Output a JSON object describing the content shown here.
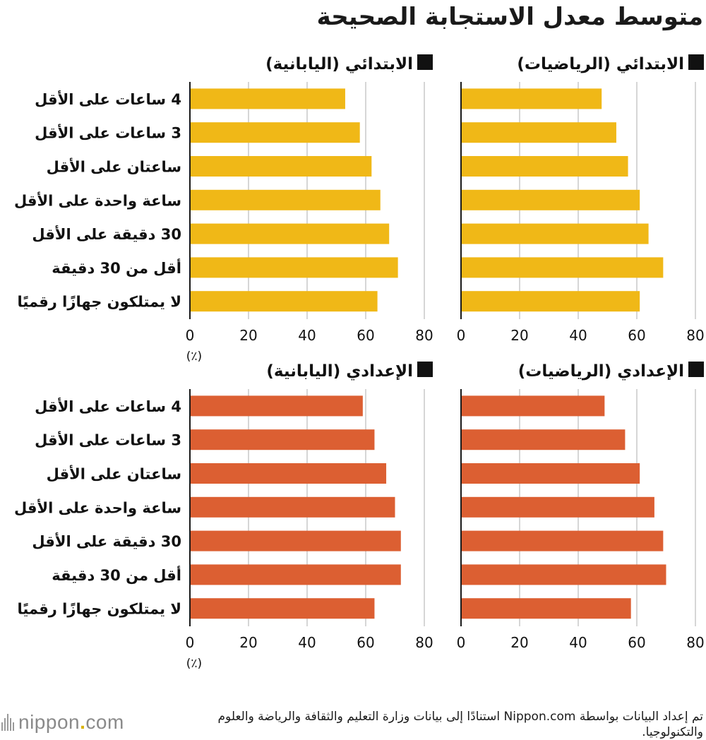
{
  "title": "متوسط معدل الاستجابة الصحيحة",
  "source": "تم إعداد البيانات بواسطة Nippon.com استنادًا إلى بيانات وزارة التعليم والثقافة والرياضة والعلوم والتكنولوجيا.",
  "logo": {
    "brand": "nippon",
    "dot": ".",
    "tld": "com"
  },
  "colors": {
    "elementary": "#f0b817",
    "middle": "#dc5f32",
    "grid": "#c8c8c8",
    "axis": "#1a1a1a"
  },
  "chart_data": [
    {
      "type": "bar",
      "orientation": "horizontal",
      "title": "الابتدائي (الرياضيات)",
      "categories": [
        "4 ساعات على الأقل",
        "3 ساعات على الأقل",
        "ساعتان على الأقل",
        "ساعة واحدة على الأقل",
        "30 دقيقة على الأقل",
        "أقل من 30 دقيقة",
        "لا يمتلكون جهازًا رقميًا"
      ],
      "values": [
        48,
        53,
        57,
        61,
        64,
        69,
        61
      ],
      "xlim": [
        0,
        80
      ],
      "xticks": [
        0,
        20,
        40,
        60,
        80
      ],
      "xunit": "",
      "grid": true,
      "color": "elementary"
    },
    {
      "type": "bar",
      "orientation": "horizontal",
      "title": "الابتدائي (اليابانية)",
      "categories": [
        "4 ساعات على الأقل",
        "3 ساعات على الأقل",
        "ساعتان على الأقل",
        "ساعة واحدة على الأقل",
        "30 دقيقة على الأقل",
        "أقل من 30 دقيقة",
        "لا يمتلكون جهازًا رقميًا"
      ],
      "values": [
        53,
        58,
        62,
        65,
        68,
        71,
        64
      ],
      "xlim": [
        0,
        80
      ],
      "xticks": [
        0,
        20,
        40,
        60,
        80
      ],
      "xunit": "(٪)",
      "grid": true,
      "color": "elementary"
    },
    {
      "type": "bar",
      "orientation": "horizontal",
      "title": "الإعدادي (الرياضيات)",
      "categories": [
        "4 ساعات على الأقل",
        "3 ساعات على الأقل",
        "ساعتان على الأقل",
        "ساعة واحدة على الأقل",
        "30 دقيقة على الأقل",
        "أقل من 30 دقيقة",
        "لا يمتلكون جهازًا رقميًا"
      ],
      "values": [
        49,
        56,
        61,
        66,
        69,
        70,
        58
      ],
      "xlim": [
        0,
        80
      ],
      "xticks": [
        0,
        20,
        40,
        60,
        80
      ],
      "xunit": "",
      "grid": true,
      "color": "middle"
    },
    {
      "type": "bar",
      "orientation": "horizontal",
      "title": "الإعدادي (اليابانية)",
      "categories": [
        "4 ساعات على الأقل",
        "3 ساعات على الأقل",
        "ساعتان على الأقل",
        "ساعة واحدة على الأقل",
        "30 دقيقة على الأقل",
        "أقل من 30 دقيقة",
        "لا يمتلكون جهازًا رقميًا"
      ],
      "values": [
        59,
        63,
        67,
        70,
        72,
        72,
        63
      ],
      "xlim": [
        0,
        80
      ],
      "xticks": [
        0,
        20,
        40,
        60,
        80
      ],
      "xunit": "(٪)",
      "grid": true,
      "color": "middle"
    }
  ]
}
